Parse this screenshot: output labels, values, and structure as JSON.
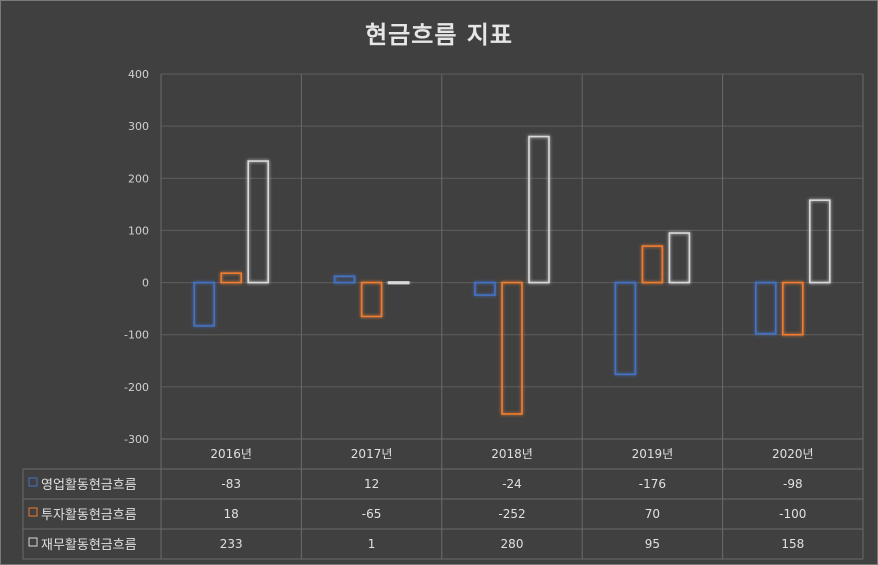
{
  "chart_data": {
    "type": "bar",
    "title": "현금흐름 지표",
    "categories": [
      "2016년",
      "2017년",
      "2018년",
      "2019년",
      "2020년"
    ],
    "series": [
      {
        "name": "영업활동현금흐름",
        "values": [
          -83,
          12,
          -24,
          -176,
          -98
        ],
        "color": "#4472c4"
      },
      {
        "name": "투자활동현금흐름",
        "values": [
          18,
          -65,
          -252,
          70,
          -100
        ],
        "color": "#ed7d31"
      },
      {
        "name": "재무활동현금흐름",
        "values": [
          233,
          1,
          280,
          95,
          158
        ],
        "color": "#d9d9d9"
      }
    ],
    "data_table": true,
    "ylim": [
      -300,
      400
    ],
    "yticks": [
      400,
      300,
      200,
      100,
      0,
      -100,
      -200,
      -300
    ],
    "grid": true,
    "bar_style": "outline-glow"
  }
}
